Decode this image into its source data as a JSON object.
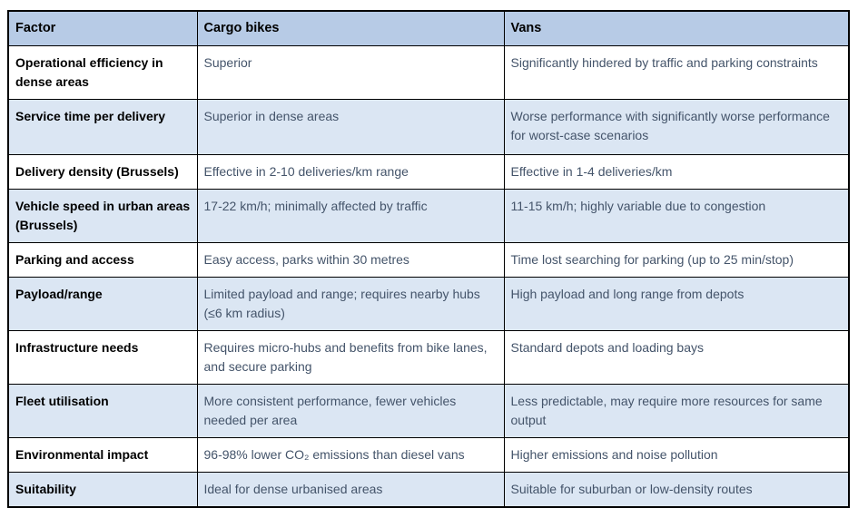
{
  "colors": {
    "header_background": "#b7cbe6",
    "banded_row_background": "#dbe6f3",
    "border": "#000000",
    "factor_text": "#000000",
    "body_text": "#44546a",
    "page_background": "#ffffff"
  },
  "table": {
    "headers": [
      "Factor",
      "Cargo bikes",
      "Vans"
    ],
    "rows": [
      {
        "factor": "Operational efficiency in dense areas",
        "cargo_bikes": "Superior",
        "vans": "Significantly hindered by traffic and parking constraints"
      },
      {
        "factor": "Service time per delivery",
        "cargo_bikes": "Superior in dense areas",
        "vans": "Worse performance with significantly worse performance for worst-case scenarios"
      },
      {
        "factor": "Delivery density (Brussels)",
        "cargo_bikes": "Effective in 2-10 deliveries/km range",
        "vans": "Effective in 1-4 deliveries/km"
      },
      {
        "factor": "Vehicle speed in urban areas (Brussels)",
        "cargo_bikes": "17-22 km/h; minimally affected by traffic",
        "vans": "11-15 km/h; highly variable due to congestion"
      },
      {
        "factor": "Parking and access",
        "cargo_bikes": "Easy access, parks within 30 metres",
        "vans": "Time lost searching for parking (up to 25 min/stop)"
      },
      {
        "factor": "Payload/range",
        "cargo_bikes": "Limited payload and range; requires nearby hubs (≤6 km radius)",
        "vans": "High payload and long range from depots"
      },
      {
        "factor": "Infrastructure needs",
        "cargo_bikes": "Requires micro-hubs and benefits from bike lanes, and secure parking",
        "vans": "Standard depots and loading bays"
      },
      {
        "factor": "Fleet utilisation",
        "cargo_bikes": "More consistent performance, fewer vehicles needed per area",
        "vans": "Less predictable, may require more resources for same output"
      },
      {
        "factor": "Environmental impact",
        "cargo_bikes": "96-98% lower CO₂ emissions than diesel vans",
        "vans": "Higher emissions and noise pollution"
      },
      {
        "factor": "Suitability",
        "cargo_bikes": "Ideal for dense urbanised areas",
        "vans": "Suitable for suburban or low-density routes"
      }
    ]
  }
}
